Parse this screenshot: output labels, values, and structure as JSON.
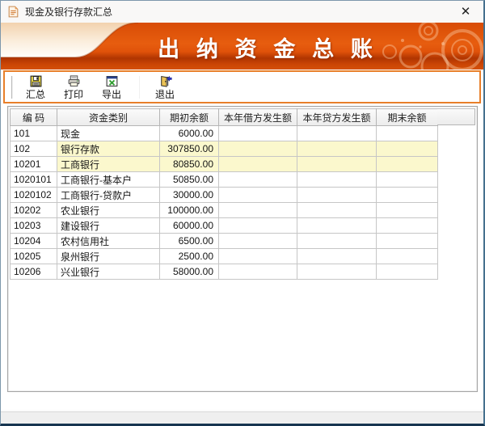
{
  "window": {
    "title": "现金及银行存款汇总",
    "close_label": "✕"
  },
  "banner": {
    "title": "出 纳 资 金 总 账"
  },
  "toolbar": {
    "buttons": [
      {
        "icon": "summarize-save-icon",
        "label": "汇总"
      },
      {
        "icon": "print-icon",
        "label": "打印"
      },
      {
        "icon": "export-icon",
        "label": "导出"
      },
      {
        "icon": "exit-icon",
        "label": "退出"
      }
    ]
  },
  "table": {
    "columns": [
      "编  码",
      "资金类别",
      "期初余额",
      "本年借方发生额",
      "本年贷方发生额",
      "期末余额"
    ],
    "rows": [
      {
        "code": "101",
        "category": "现金",
        "opening": "6000.00",
        "debit": "",
        "credit": "",
        "ending": "",
        "highlight": false
      },
      {
        "code": "102",
        "category": "银行存款",
        "opening": "307850.00",
        "debit": "",
        "credit": "",
        "ending": "",
        "highlight": true
      },
      {
        "code": "10201",
        "category": "工商银行",
        "opening": "80850.00",
        "debit": "",
        "credit": "",
        "ending": "",
        "highlight": true
      },
      {
        "code": "1020101",
        "category": "工商银行-基本户",
        "opening": "50850.00",
        "debit": "",
        "credit": "",
        "ending": "",
        "highlight": false
      },
      {
        "code": "1020102",
        "category": "工商银行-贷款户",
        "opening": "30000.00",
        "debit": "",
        "credit": "",
        "ending": "",
        "highlight": false
      },
      {
        "code": "10202",
        "category": "农业银行",
        "opening": "100000.00",
        "debit": "",
        "credit": "",
        "ending": "",
        "highlight": false
      },
      {
        "code": "10203",
        "category": "建设银行",
        "opening": "60000.00",
        "debit": "",
        "credit": "",
        "ending": "",
        "highlight": false
      },
      {
        "code": "10204",
        "category": "农村信用社",
        "opening": "6500.00",
        "debit": "",
        "credit": "",
        "ending": "",
        "highlight": false
      },
      {
        "code": "10205",
        "category": "泉州银行",
        "opening": "2500.00",
        "debit": "",
        "credit": "",
        "ending": "",
        "highlight": false
      },
      {
        "code": "10206",
        "category": "兴业银行",
        "opening": "58000.00",
        "debit": "",
        "credit": "",
        "ending": "",
        "highlight": false
      }
    ]
  },
  "colors": {
    "banner_orange": "#e0520a",
    "banner_dark": "#b03501",
    "cream": "#f3d5b5",
    "highlight_yellow": "#fbf8cd",
    "toolbar_border": "#e87f2a",
    "grid_line": "#c6c6c6"
  }
}
